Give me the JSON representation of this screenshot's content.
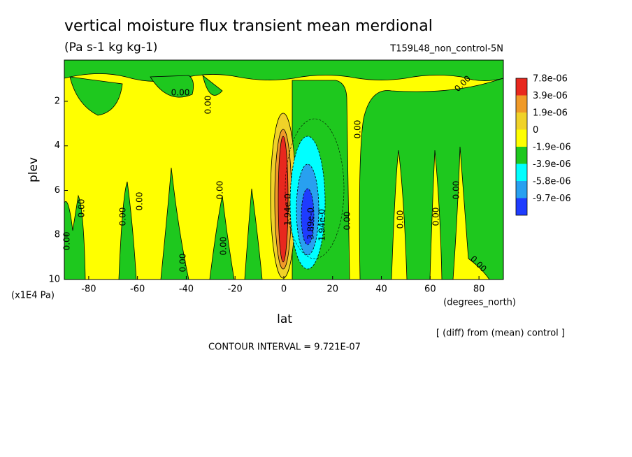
{
  "chart_data": {
    "type": "contour",
    "title": "vertical moisture flux transient mean merdional",
    "subtitle": "(Pa s-1 kg kg-1)",
    "experiment": "T159L48_non_control-5N",
    "x_label": "lat",
    "x_units": "(degrees_north)",
    "y_label": "plev",
    "y_units": "(x1E4 Pa)",
    "note": "[ (diff) from (mean) control ]",
    "contour_interval": "CONTOUR INTERVAL = 9.721E-07",
    "xlim": [
      -90,
      90
    ],
    "xticks": [
      -80,
      -60,
      -40,
      -20,
      0,
      20,
      40,
      60,
      80
    ],
    "ylim": [
      0.15,
      10
    ],
    "yticks": [
      2,
      4,
      6,
      8,
      10
    ],
    "y_reversed": true,
    "levels": [
      {
        "value": 7.8e-06,
        "label": "7.8e-06"
      },
      {
        "value": 3.9e-06,
        "label": "3.9e-06"
      },
      {
        "value": 1.9e-06,
        "label": "1.9e-06"
      },
      0,
      {
        "value": -1.9e-06,
        "label": "-1.9e-06"
      },
      {
        "value": -3.9e-06,
        "label": "-3.9e-06"
      },
      {
        "value": -5.8e-06,
        "label": "-5.8e-06"
      },
      {
        "value": -9.7e-06,
        "label": "-9.7e-06"
      }
    ],
    "level_colors": [
      "#e8281e",
      "#f09a28",
      "#f0d228",
      "#ffff00",
      "#1ec81e",
      "#00ffff",
      "#28a0f0",
      "#1e3cff"
    ],
    "contour_labels": [
      "0.00",
      "0.00",
      "0.00",
      "0.00",
      "0.00",
      "0.00",
      "0.00",
      "0.00",
      "0.00",
      "0.00",
      "0.00",
      "0.00",
      "0.00",
      "0.00",
      "0.00",
      "0.00",
      "3.89e-0",
      "1.94e-0",
      "1.94e-0"
    ]
  }
}
